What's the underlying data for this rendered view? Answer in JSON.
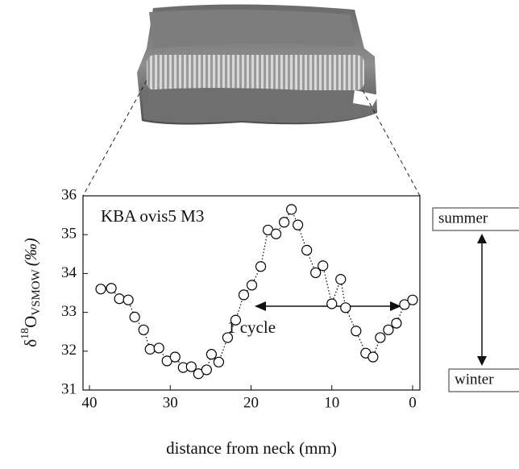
{
  "chart_data": {
    "type": "line",
    "annotation": "KBA ovis5 M3",
    "cycle_label": "1 cycle",
    "summer_label": "summer",
    "winter_label": "winter",
    "x_label": "distance from neck (mm)",
    "y_label": {
      "prefix": "δ",
      "sup": "18",
      "main": "O",
      "sub": "VSMOW",
      "unit": "(‰)"
    },
    "x": [
      38.6,
      37.3,
      36.3,
      35.2,
      34.4,
      33.3,
      32.5,
      31.4,
      30.4,
      29.4,
      28.4,
      27.4,
      26.5,
      25.5,
      24.9,
      24.0,
      22.9,
      21.9,
      20.9,
      19.9,
      18.8,
      17.9,
      16.9,
      15.9,
      15.0,
      14.2,
      13.1,
      12.0,
      11.1,
      10.0,
      8.9,
      8.3,
      7.0,
      5.8,
      4.9,
      4.0,
      3.0,
      2.0,
      1.0,
      0.0
    ],
    "series": [
      {
        "color": "#000000",
        "values": [
          33.6,
          33.62,
          33.35,
          33.32,
          32.88,
          32.55,
          32.05,
          32.08,
          31.75,
          31.85,
          31.58,
          31.6,
          31.42,
          31.52,
          31.92,
          31.72,
          32.35,
          32.8,
          33.45,
          33.7,
          34.18,
          35.12,
          35.02,
          35.32,
          35.65,
          35.25,
          34.6,
          34.02,
          34.2,
          33.22,
          33.85,
          33.12,
          32.52,
          31.95,
          31.85,
          32.35,
          32.55,
          32.72,
          33.2,
          33.32
        ]
      }
    ],
    "xlim": [
      40.8,
      -0.9
    ],
    "xticks": [
      40,
      30,
      20,
      10,
      0
    ],
    "ylim": [
      31,
      36
    ],
    "yticks": [
      31,
      32,
      33,
      34,
      35,
      36
    ],
    "grid": false
  }
}
